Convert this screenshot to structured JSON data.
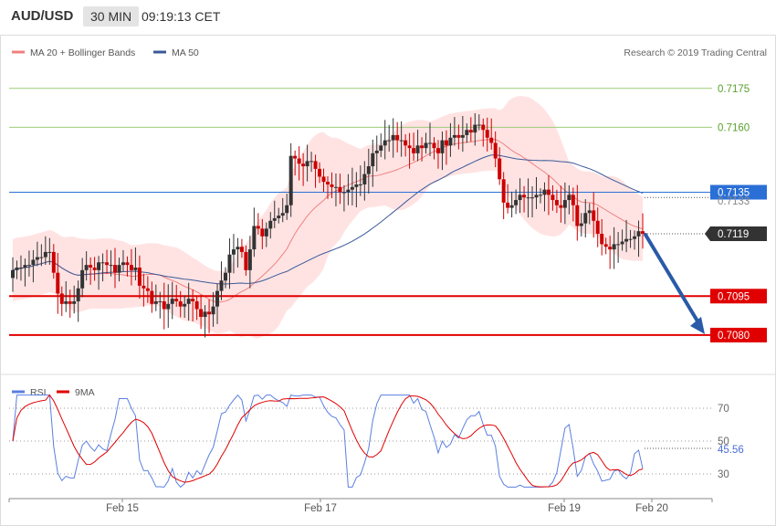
{
  "header": {
    "symbol": "AUD/USD",
    "timeframe": "30 MIN",
    "time": "09:19:13 CET"
  },
  "legend_main": {
    "ma20_label": "MA 20 + Bollinger Bands",
    "ma50_label": "MA 50"
  },
  "copyright": "Research © 2019 Trading Central",
  "legend_rsi": {
    "rsi_label": "RSI",
    "ma_label": "9MA"
  },
  "colors": {
    "bull": "#333333",
    "bear": "#cc0000",
    "band": "#ffd9d9",
    "ma20": "#f08080",
    "ma50": "#3b5998",
    "green": "#9ccc7a",
    "red": "#e00000",
    "blue": "#2a6fd6",
    "dark": "#333333",
    "arrow": "#2a5aa8",
    "rsi": "#5b7fe0",
    "rsi_ma": "#e00000"
  },
  "chart_data": [
    {
      "type": "candlestick",
      "title": "AUD/USD 30 MIN",
      "ylim": [
        0.7074,
        0.7183
      ],
      "x_ticks": [
        "Feb 15",
        "Feb 17",
        "Feb 19",
        "Feb 20"
      ],
      "levels": [
        {
          "value": 0.7175,
          "label": "0.7175",
          "style": "green"
        },
        {
          "value": 0.716,
          "label": "0.7160",
          "style": "green"
        },
        {
          "value": 0.7135,
          "label": "0.7135",
          "style": "blue"
        },
        {
          "value": 0.7133,
          "label": "0.7133",
          "style": "dotted"
        },
        {
          "value": 0.7119,
          "label": "0.7119",
          "style": "dark"
        },
        {
          "value": 0.7095,
          "label": "0.7095",
          "style": "red"
        },
        {
          "value": 0.708,
          "label": "0.7080",
          "style": "red"
        }
      ],
      "closes": [
        0.7105,
        0.7106,
        0.7106,
        0.7107,
        0.7107,
        0.7109,
        0.711,
        0.711,
        0.7112,
        0.7112,
        0.7104,
        0.7096,
        0.7092,
        0.7093,
        0.7092,
        0.7093,
        0.7098,
        0.7105,
        0.7107,
        0.7106,
        0.7105,
        0.7108,
        0.7108,
        0.7107,
        0.7107,
        0.7104,
        0.7107,
        0.7108,
        0.7107,
        0.7105,
        0.7106,
        0.7099,
        0.7098,
        0.7097,
        0.7092,
        0.7093,
        0.7093,
        0.709,
        0.7092,
        0.7094,
        0.7093,
        0.7091,
        0.7092,
        0.7094,
        0.7093,
        0.709,
        0.7087,
        0.7089,
        0.7088,
        0.7091,
        0.7097,
        0.7101,
        0.7104,
        0.7111,
        0.7113,
        0.7114,
        0.7112,
        0.7105,
        0.7113,
        0.7122,
        0.7121,
        0.7118,
        0.7121,
        0.7124,
        0.7125,
        0.7126,
        0.7127,
        0.713,
        0.7149,
        0.7148,
        0.7146,
        0.7145,
        0.7147,
        0.7147,
        0.7144,
        0.7141,
        0.7139,
        0.7138,
        0.7137,
        0.7137,
        0.7135,
        0.7135,
        0.7136,
        0.7137,
        0.7138,
        0.7138,
        0.7142,
        0.7145,
        0.715,
        0.7151,
        0.7153,
        0.7155,
        0.7155,
        0.7157,
        0.7155,
        0.7155,
        0.7153,
        0.7152,
        0.715,
        0.7153,
        0.7152,
        0.7154,
        0.7154,
        0.7152,
        0.715,
        0.7155,
        0.7153,
        0.7156,
        0.7157,
        0.7156,
        0.7157,
        0.7159,
        0.7158,
        0.7161,
        0.7161,
        0.7159,
        0.7156,
        0.7154,
        0.7148,
        0.714,
        0.7131,
        0.7129,
        0.713,
        0.7132,
        0.7134,
        0.7133,
        0.7133,
        0.7133,
        0.7134,
        0.7134,
        0.7136,
        0.7134,
        0.7132,
        0.713,
        0.7129,
        0.7132,
        0.7134,
        0.713,
        0.7122,
        0.7123,
        0.7127,
        0.7128,
        0.7124,
        0.7119,
        0.7115,
        0.7114,
        0.7113,
        0.7115,
        0.7115,
        0.7116,
        0.7117,
        0.7117,
        0.7118,
        0.712,
        0.7119
      ]
    },
    {
      "type": "line",
      "title": "RSI",
      "ylim": [
        15,
        85
      ],
      "y_ticks": [
        70,
        50,
        30
      ],
      "last_value": "45.56",
      "x_ticks": [
        "Feb 15",
        "Feb 17",
        "Feb 19",
        "Feb 20"
      ]
    }
  ]
}
